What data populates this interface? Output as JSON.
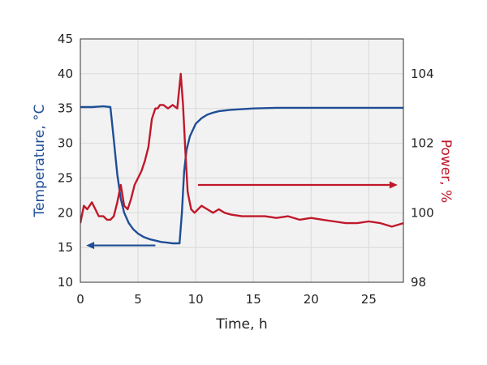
{
  "chart_data": {
    "type": "line",
    "title": "",
    "xlabel": "Time, h",
    "ylabel_left": "Temperature, °C",
    "ylabel_right": "Power, %",
    "xlim": [
      0,
      28
    ],
    "ylim_left": [
      10,
      45
    ],
    "ylim_right": [
      98,
      105
    ],
    "x_ticks": [
      0,
      5,
      10,
      15,
      20,
      25
    ],
    "y_left_ticks": [
      10,
      15,
      20,
      25,
      30,
      35,
      40,
      45
    ],
    "y_right_ticks": [
      98,
      100,
      102,
      104
    ],
    "grid": true,
    "colors": {
      "temperature": "#1f4e96",
      "power": "#c0182a",
      "plot_bg": "#f2f2f2",
      "grid": "#d9d9d9"
    },
    "series": [
      {
        "axis": "left",
        "x": [
          0,
          1,
          2,
          2.6,
          2.9,
          3.2,
          3.5,
          3.8,
          4.2,
          4.6,
          5,
          5.5,
          6,
          6.5,
          7,
          7.5,
          8,
          8.6,
          8.8,
          9.0,
          9.2,
          9.5,
          10,
          10.5,
          11,
          11.5,
          12,
          13,
          14,
          15,
          17,
          20,
          23,
          26,
          28
        ],
        "values": [
          35.2,
          35.2,
          35.3,
          35.2,
          30.5,
          25.5,
          22.0,
          20.0,
          18.5,
          17.6,
          17.0,
          16.5,
          16.2,
          16.0,
          15.8,
          15.7,
          15.6,
          15.6,
          20,
          26,
          29,
          31,
          32.8,
          33.6,
          34.1,
          34.4,
          34.6,
          34.8,
          34.9,
          35.0,
          35.1,
          35.1,
          35.1,
          35.1,
          35.1
        ]
      },
      {
        "axis": "right",
        "x": [
          0,
          0.3,
          0.6,
          1.0,
          1.3,
          1.6,
          2.0,
          2.3,
          2.6,
          2.9,
          3.2,
          3.5,
          3.8,
          4.1,
          4.4,
          4.7,
          5.0,
          5.3,
          5.6,
          5.9,
          6.2,
          6.5,
          6.7,
          6.9,
          7.2,
          7.6,
          8.0,
          8.4,
          8.7,
          8.9,
          9.1,
          9.3,
          9.6,
          9.9,
          10.2,
          10.5,
          11,
          11.5,
          12,
          12.5,
          13,
          14,
          15,
          16,
          17,
          18,
          19,
          20,
          21,
          22,
          23,
          24,
          25,
          26,
          27,
          28
        ],
        "values": [
          99.7,
          100.2,
          100.1,
          100.3,
          100.1,
          99.9,
          99.9,
          99.8,
          99.8,
          99.9,
          100.3,
          100.8,
          100.2,
          100.1,
          100.4,
          100.8,
          101.0,
          101.2,
          101.5,
          101.9,
          102.7,
          103.0,
          103.0,
          103.1,
          103.1,
          103.0,
          103.1,
          103.0,
          104.0,
          103.1,
          101.8,
          100.6,
          100.1,
          100.0,
          100.1,
          100.2,
          100.1,
          100.0,
          100.1,
          100.0,
          99.95,
          99.9,
          99.9,
          99.9,
          99.85,
          99.9,
          99.8,
          99.85,
          99.8,
          99.75,
          99.7,
          99.7,
          99.75,
          99.7,
          99.6,
          99.7
        ]
      }
    ],
    "arrows": [
      {
        "axis": "left",
        "from_x": 6.5,
        "to_x": 0.5,
        "y": 15.3,
        "direction": "left"
      },
      {
        "axis": "right",
        "from_x": 10.2,
        "to_x": 27.5,
        "y": 100.8,
        "direction": "right"
      }
    ]
  }
}
